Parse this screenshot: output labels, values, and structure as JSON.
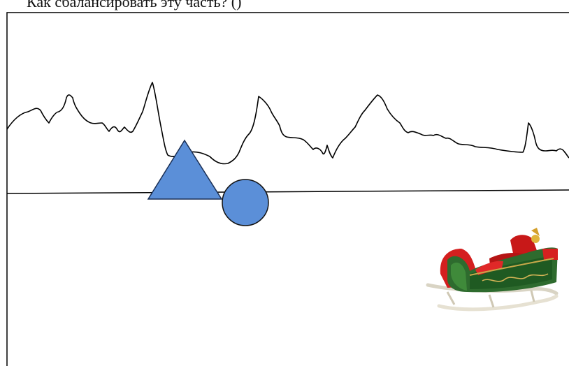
{
  "prompt": {
    "text": "Как сбалансировать эту часть? ()"
  },
  "shapes": {
    "triangle": {
      "fill": "#5b8fd8",
      "stroke": "#1a2f55"
    },
    "circle": {
      "fill": "#5b8fd8",
      "stroke": "#111111"
    }
  },
  "icons": {
    "sleigh": "sleigh-illustration"
  }
}
